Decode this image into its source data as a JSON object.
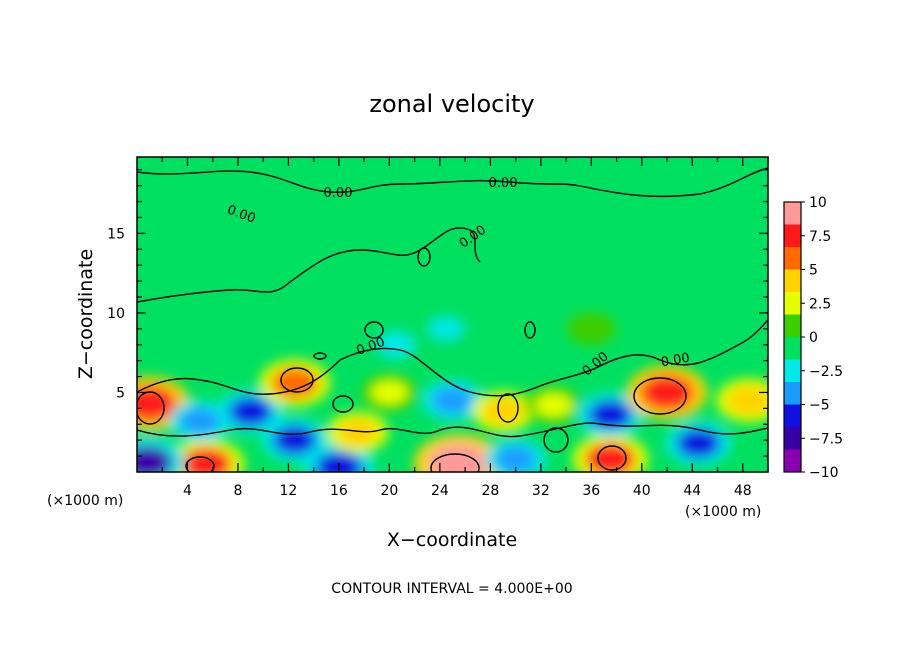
{
  "chart_data": {
    "type": "heatmap",
    "title": "zonal velocity",
    "xlabel": "X−coordinate",
    "ylabel": "Z−coordinate",
    "x_unit_left": "(×1000 m)",
    "x_unit_right": "(×1000 m)",
    "xlim": [
      0,
      50
    ],
    "ylim": [
      0,
      19.8
    ],
    "xticks": [
      "4",
      "8",
      "12",
      "16",
      "20",
      "24",
      "28",
      "32",
      "36",
      "40",
      "44",
      "48"
    ],
    "xtick_values": [
      4,
      8,
      12,
      16,
      20,
      24,
      28,
      32,
      36,
      40,
      44,
      48
    ],
    "yticks": [
      "5",
      "10",
      "15"
    ],
    "ytick_values": [
      5,
      10,
      15
    ],
    "colorbar": {
      "labels": [
        "10",
        "7.5",
        "5",
        "2.5",
        "0",
        "−2.5",
        "−5",
        "−7.5",
        "−10"
      ],
      "values": [
        10,
        7.5,
        5,
        2.5,
        0,
        -2.5,
        -5,
        -7.5,
        -10
      ],
      "colors": [
        "#ff9a9a",
        "#ff1a1a",
        "#ff6a00",
        "#ffd200",
        "#e6ff00",
        "#3ccf00",
        "#00e060",
        "#00e8e8",
        "#1a9cff",
        "#1010e0",
        "#3a00a8",
        "#8a00b0"
      ]
    },
    "background_value": 0,
    "features": [
      {
        "x": 1.0,
        "z": 4.3,
        "value": 8
      },
      {
        "x": 5.5,
        "z": 0.5,
        "value": 7
      },
      {
        "x": 5.0,
        "z": 3.2,
        "value": -4
      },
      {
        "x": 9.0,
        "z": 3.8,
        "value": -5
      },
      {
        "x": 12.5,
        "z": 5.6,
        "value": 6
      },
      {
        "x": 12.5,
        "z": 2.0,
        "value": -5
      },
      {
        "x": 16.0,
        "z": 0.3,
        "value": -6
      },
      {
        "x": 17.5,
        "z": 2.5,
        "value": 4
      },
      {
        "x": 20.5,
        "z": 8.0,
        "value": -3
      },
      {
        "x": 25.0,
        "z": 4.5,
        "value": -4
      },
      {
        "x": 25.5,
        "z": 0.5,
        "value": 10
      },
      {
        "x": 24.5,
        "z": 9.0,
        "value": -2
      },
      {
        "x": 29.0,
        "z": 3.8,
        "value": 4
      },
      {
        "x": 30.0,
        "z": 0.8,
        "value": -4
      },
      {
        "x": 33.0,
        "z": 4.2,
        "value": 3
      },
      {
        "x": 37.5,
        "z": 0.8,
        "value": 7
      },
      {
        "x": 37.5,
        "z": 3.6,
        "value": -5
      },
      {
        "x": 42.0,
        "z": 5.0,
        "value": 8
      },
      {
        "x": 44.5,
        "z": 1.8,
        "value": -5
      },
      {
        "x": 48.5,
        "z": 4.5,
        "value": 5
      },
      {
        "x": 0.8,
        "z": 0.6,
        "value": -7
      },
      {
        "x": 20.0,
        "z": 5.0,
        "value": 3
      },
      {
        "x": 36.0,
        "z": 9.0,
        "value": 1.5
      }
    ],
    "contour_labels": [
      "0.00",
      "0.00",
      "0.00",
      "0.00",
      "0.00",
      "0.00",
      "0.00"
    ],
    "contour_interval_text": "CONTOUR INTERVAL = 4.000E+00"
  }
}
